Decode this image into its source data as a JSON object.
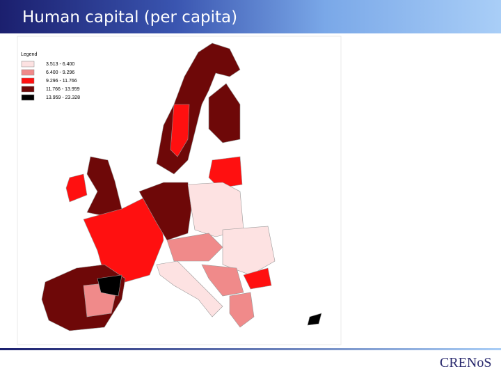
{
  "header": {
    "title": "Human capital (per capita)"
  },
  "legend": {
    "title": "Legend",
    "items": [
      {
        "label": "3.513 -  6.400",
        "color": "#fde2e2"
      },
      {
        "label": "6.400 -  9.296",
        "color": "#f08a8a"
      },
      {
        "label": "9.296 - 11.766",
        "color": "#ff1010"
      },
      {
        "label": "11.766 - 13.959",
        "color": "#6e0808"
      },
      {
        "label": "13.959 - 23.328",
        "color": "#000000"
      }
    ]
  },
  "footer": {
    "logo": "CRENoS"
  }
}
